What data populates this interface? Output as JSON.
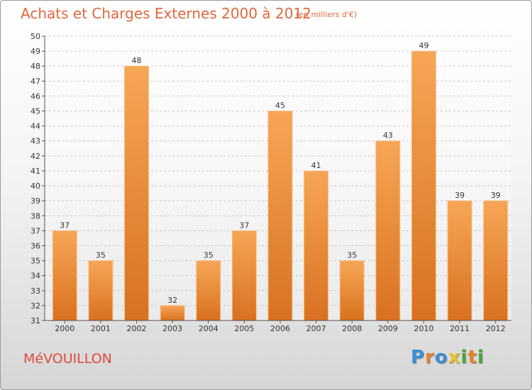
{
  "chart_data": {
    "type": "bar",
    "title": "Achats et Charges Externes 2000 à 2012",
    "subtitle": "(en milliers d'€)",
    "categories": [
      "2000",
      "2001",
      "2002",
      "2003",
      "2004",
      "2005",
      "2006",
      "2007",
      "2008",
      "2009",
      "2010",
      "2011",
      "2012"
    ],
    "values": [
      37,
      35,
      48,
      32,
      35,
      37,
      45,
      41,
      35,
      43,
      49,
      39,
      39
    ],
    "ylim": [
      31,
      50
    ],
    "yticks": [
      31,
      32,
      33,
      34,
      35,
      36,
      37,
      38,
      39,
      40,
      41,
      42,
      43,
      44,
      45,
      46,
      47,
      48,
      49,
      50
    ],
    "grid": true,
    "bar_color_light": "#f7a656",
    "bar_color_dark": "#d8711f"
  },
  "footer": {
    "commune": "MéVOUILLON",
    "logo_letters": [
      "P",
      "r",
      "o",
      "x",
      "i",
      "t",
      "i"
    ],
    "logo_colors": [
      "#3a8fd6",
      "#e8822a",
      "#3a8fd6",
      "#e8c12a",
      "#4aa83a",
      "#e8822a",
      "#4aa83a"
    ]
  }
}
